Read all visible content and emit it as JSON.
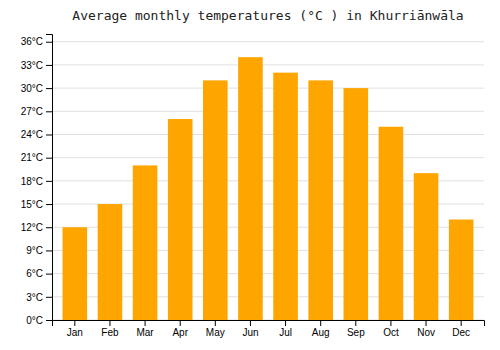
{
  "chart_data": {
    "type": "bar",
    "title": "Average monthly temperatures (°C ) in Khurriānwāla",
    "categories": [
      "Jan",
      "Feb",
      "Mar",
      "Apr",
      "May",
      "Jun",
      "Jul",
      "Aug",
      "Sep",
      "Oct",
      "Nov",
      "Dec"
    ],
    "values": [
      12,
      15,
      20,
      26,
      31,
      34,
      32,
      31,
      30,
      25,
      19,
      13
    ],
    "color": "#FFA500",
    "ylim": [
      0,
      37
    ],
    "yticks": [
      {
        "value": 0,
        "label": "0°C"
      },
      {
        "value": 3,
        "label": "3°C"
      },
      {
        "value": 6,
        "label": "6°C"
      },
      {
        "value": 9,
        "label": "9°C"
      },
      {
        "value": 12,
        "label": "12°C"
      },
      {
        "value": 15,
        "label": "15°C"
      },
      {
        "value": 18,
        "label": "18°C"
      },
      {
        "value": 21,
        "label": "21°C"
      },
      {
        "value": 24,
        "label": "24°C"
      },
      {
        "value": 27,
        "label": "27°C"
      },
      {
        "value": 30,
        "label": "30°C"
      },
      {
        "value": 33,
        "label": "33°C"
      },
      {
        "value": 36,
        "label": "36°C"
      }
    ],
    "grid": true
  }
}
